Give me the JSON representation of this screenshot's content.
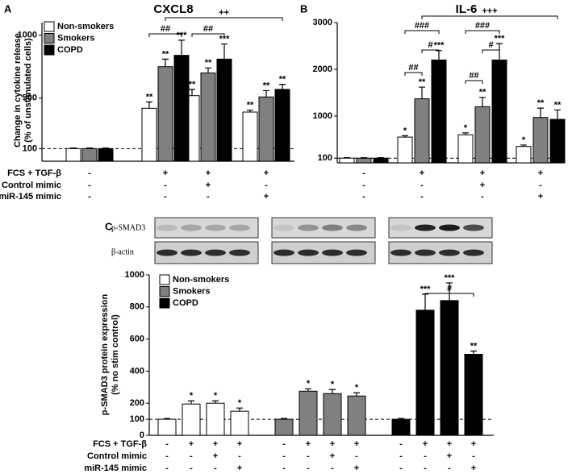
{
  "chart_data": [
    {
      "type": "bar",
      "panel": "A",
      "title": "CXCL8",
      "ylabel": [
        "Change in cytokine release",
        "(% of unstimulated cells)"
      ],
      "ylim": [
        0,
        1100
      ],
      "yticks": [
        100,
        500,
        1000
      ],
      "reference_line": 100,
      "legend": "upper-left",
      "series": [
        {
          "name": "Non-smokers",
          "color": "#ffffff",
          "values": [
            100,
            420,
            520,
            390
          ],
          "errors": [
            5,
            50,
            50,
            15
          ],
          "stars": [
            null,
            "**",
            "**",
            "**"
          ]
        },
        {
          "name": "Smokers",
          "color": "#808080",
          "values": [
            100,
            750,
            700,
            510
          ],
          "errors": [
            5,
            60,
            40,
            50
          ],
          "stars": [
            null,
            "**",
            "**",
            "**"
          ]
        },
        {
          "name": "COPD",
          "color": "#000000",
          "values": [
            100,
            840,
            810,
            570
          ],
          "errors": [
            5,
            120,
            120,
            40
          ],
          "stars": [
            null,
            "***",
            "***",
            "**"
          ]
        }
      ],
      "conditions": [
        {
          "name": "FCS + TGF-β",
          "marks": [
            "-",
            "+",
            "+",
            "+"
          ]
        },
        {
          "name": "Control mimic",
          "marks": [
            "-",
            "-",
            "+",
            "-"
          ]
        },
        {
          "name": "miR-145 mimic",
          "marks": [
            "-",
            "-",
            "-",
            "+"
          ]
        }
      ],
      "brackets": [
        {
          "label": "##",
          "from": [
            0,
            1
          ],
          "to": [
            2,
            1
          ]
        },
        {
          "label": "##",
          "from": [
            0,
            2
          ],
          "to": [
            2,
            2
          ]
        },
        {
          "label": "++",
          "from": [
            1,
            1
          ],
          "to": [
            2,
            3
          ]
        }
      ]
    },
    {
      "type": "bar",
      "panel": "B",
      "title": "IL-6",
      "ylim": [
        0,
        3000
      ],
      "yticks": [
        100,
        1000,
        2000,
        3000
      ],
      "reference_line": 100,
      "series": [
        {
          "color": "#ffffff",
          "values": [
            100,
            550,
            600,
            350
          ],
          "errors": [
            10,
            30,
            40,
            30
          ],
          "stars": [
            null,
            "*",
            "*",
            "*"
          ]
        },
        {
          "color": "#808080",
          "values": [
            100,
            1370,
            1200,
            970
          ],
          "errors": [
            10,
            250,
            200,
            200
          ],
          "stars": [
            null,
            "**",
            "**",
            "**"
          ]
        },
        {
          "color": "#000000",
          "values": [
            100,
            2200,
            2200,
            930
          ],
          "errors": [
            10,
            200,
            350,
            200
          ],
          "stars": [
            null,
            "***",
            "***",
            "**"
          ]
        }
      ],
      "conditions": [
        {
          "marks": [
            "-",
            "+",
            "+",
            "+"
          ]
        },
        {
          "marks": [
            "-",
            "-",
            "+",
            "-"
          ]
        },
        {
          "marks": [
            "-",
            "-",
            "-",
            "+"
          ]
        }
      ],
      "brackets": [
        {
          "label": "##",
          "from": [
            0,
            1
          ],
          "to": [
            1,
            1
          ]
        },
        {
          "label": "#",
          "from": [
            1,
            1
          ],
          "to": [
            2,
            1
          ]
        },
        {
          "label": "###",
          "from": [
            0,
            1
          ],
          "to": [
            2,
            1
          ]
        },
        {
          "label": "##",
          "from": [
            0,
            2
          ],
          "to": [
            1,
            2
          ]
        },
        {
          "label": "#",
          "from": [
            1,
            2
          ],
          "to": [
            2,
            2
          ]
        },
        {
          "label": "###",
          "from": [
            0,
            2
          ],
          "to": [
            2,
            2
          ]
        },
        {
          "label": "+++",
          "from": [
            1,
            1
          ],
          "to": [
            2,
            3
          ]
        }
      ]
    },
    {
      "type": "bar",
      "panel": "C",
      "ylabel": [
        "p-SMAD3 protein expression",
        "(% no stim control)"
      ],
      "blot_labels": [
        "p-SMAD3",
        "β-actin"
      ],
      "ylim": [
        0,
        1000
      ],
      "yticks": [
        0,
        100,
        200,
        400,
        600,
        800,
        1000
      ],
      "reference_line": 100,
      "legend": "upper-left",
      "series": [
        {
          "name": "Non-smokers",
          "color": "#ffffff",
          "values": [
            100,
            195,
            200,
            150
          ],
          "errors": [
            5,
            20,
            15,
            20
          ],
          "stars": [
            null,
            "*",
            "*",
            "*"
          ]
        },
        {
          "name": "Smokers",
          "color": "#808080",
          "values": [
            100,
            275,
            260,
            245
          ],
          "errors": [
            5,
            15,
            25,
            20
          ],
          "stars": [
            null,
            "*",
            "*",
            "*"
          ]
        },
        {
          "name": "COPD",
          "color": "#000000",
          "values": [
            100,
            780,
            840,
            505
          ],
          "errors": [
            5,
            100,
            110,
            20
          ],
          "stars": [
            null,
            "***",
            "***",
            "**"
          ]
        }
      ],
      "conditions": [
        {
          "name": "FCS + TGF-β",
          "marks": [
            "-",
            "+",
            "+",
            "+"
          ]
        },
        {
          "name": "Control mimic",
          "marks": [
            "-",
            "-",
            "+",
            "-"
          ]
        },
        {
          "name": "miR-145 mimic",
          "marks": [
            "-",
            "-",
            "-",
            "+"
          ]
        }
      ],
      "brackets": [
        {
          "label": "#",
          "from": [
            2,
            1
          ],
          "to": [
            2,
            3
          ]
        }
      ]
    }
  ]
}
